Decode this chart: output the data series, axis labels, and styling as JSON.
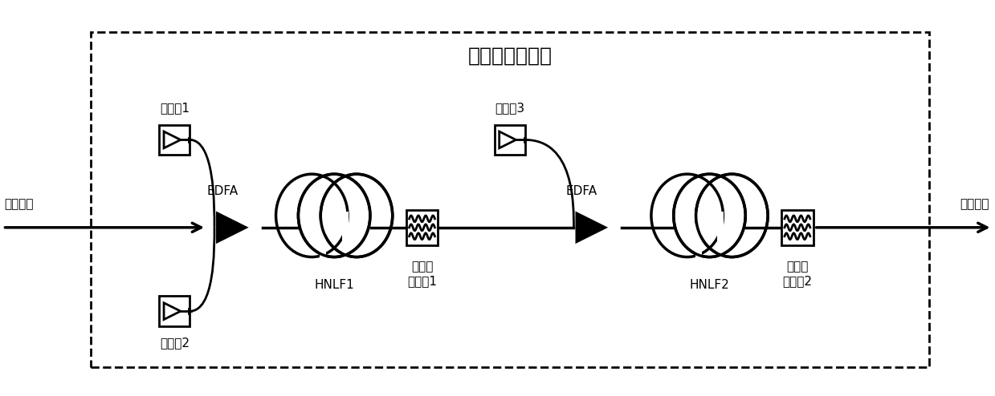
{
  "title": "待测全光再生器",
  "input_label": "输入光口",
  "output_label": "输出光口",
  "pump1_label": "泵浦光1",
  "pump2_label": "泵浦光2",
  "pump3_label": "泵浦光3",
  "edfa1_label": "EDFA",
  "edfa2_label": "EDFA",
  "hnlf1_label": "HNLF1",
  "hnlf2_label": "HNLF2",
  "filter1_label": "光带通\n滤波器1",
  "filter2_label": "光带通\n滤波器2",
  "bg_color": "#ffffff",
  "line_color": "#000000",
  "box_color": "#ffffff",
  "fig_width": 12.39,
  "fig_height": 4.94,
  "dpi": 100
}
